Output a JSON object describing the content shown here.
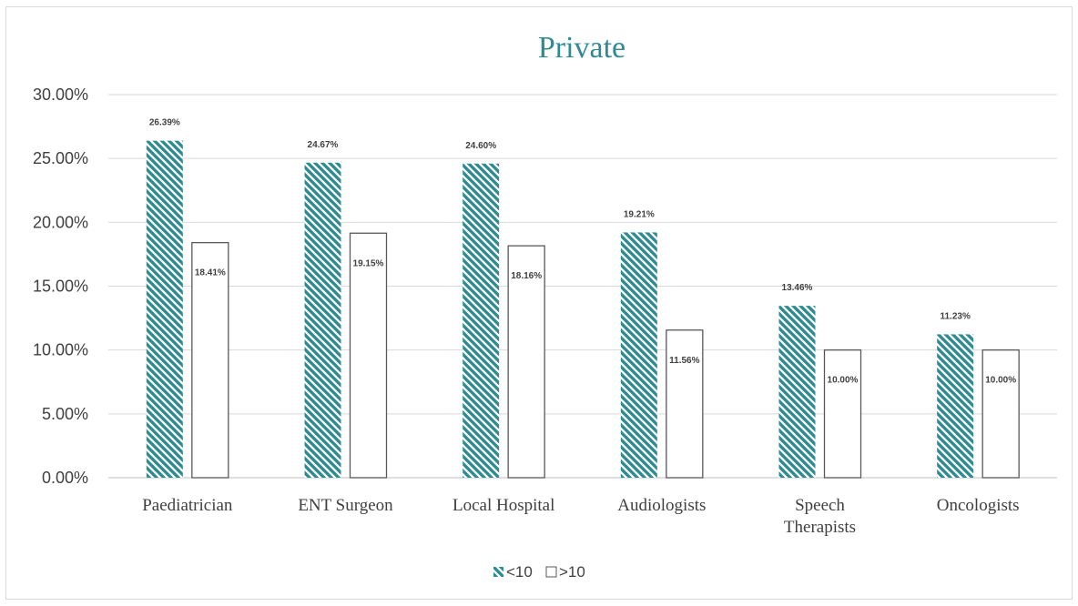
{
  "chart_data": {
    "type": "bar",
    "title": "Private",
    "categories": [
      "Paediatrician",
      "ENT Surgeon",
      "Local Hospital",
      "Audiologists",
      "Speech Therapists",
      "Oncologists"
    ],
    "category_lines": [
      [
        "Paediatrician"
      ],
      [
        "ENT Surgeon"
      ],
      [
        "Local Hospital"
      ],
      [
        "Audiologists"
      ],
      [
        "Speech",
        "Therapists"
      ],
      [
        "Oncologists"
      ]
    ],
    "series": [
      {
        "name": "<10",
        "values": [
          26.39,
          24.67,
          24.6,
          19.21,
          13.46,
          11.23
        ],
        "labels": [
          "26.39%",
          "24.67%",
          "24.60%",
          "19.21%",
          "13.46%",
          "11.23%"
        ],
        "fill": "hatch",
        "color": "#2e8b94"
      },
      {
        "name": ">10",
        "values": [
          18.41,
          19.15,
          18.16,
          11.56,
          10.0,
          10.0
        ],
        "labels": [
          "18.41%",
          "19.15%",
          "18.16%",
          "11.56%",
          "10.00%",
          "10.00%"
        ],
        "fill": "white",
        "color": "#595959"
      }
    ],
    "ylim": [
      0,
      30
    ],
    "yticks": [
      0,
      5,
      10,
      15,
      20,
      25,
      30
    ],
    "ytick_labels": [
      "0.00%",
      "5.00%",
      "10.00%",
      "15.00%",
      "20.00%",
      "25.00%",
      "30.00%"
    ],
    "xlabel": "",
    "ylabel": "",
    "grid": true,
    "legend_position": "bottom"
  }
}
